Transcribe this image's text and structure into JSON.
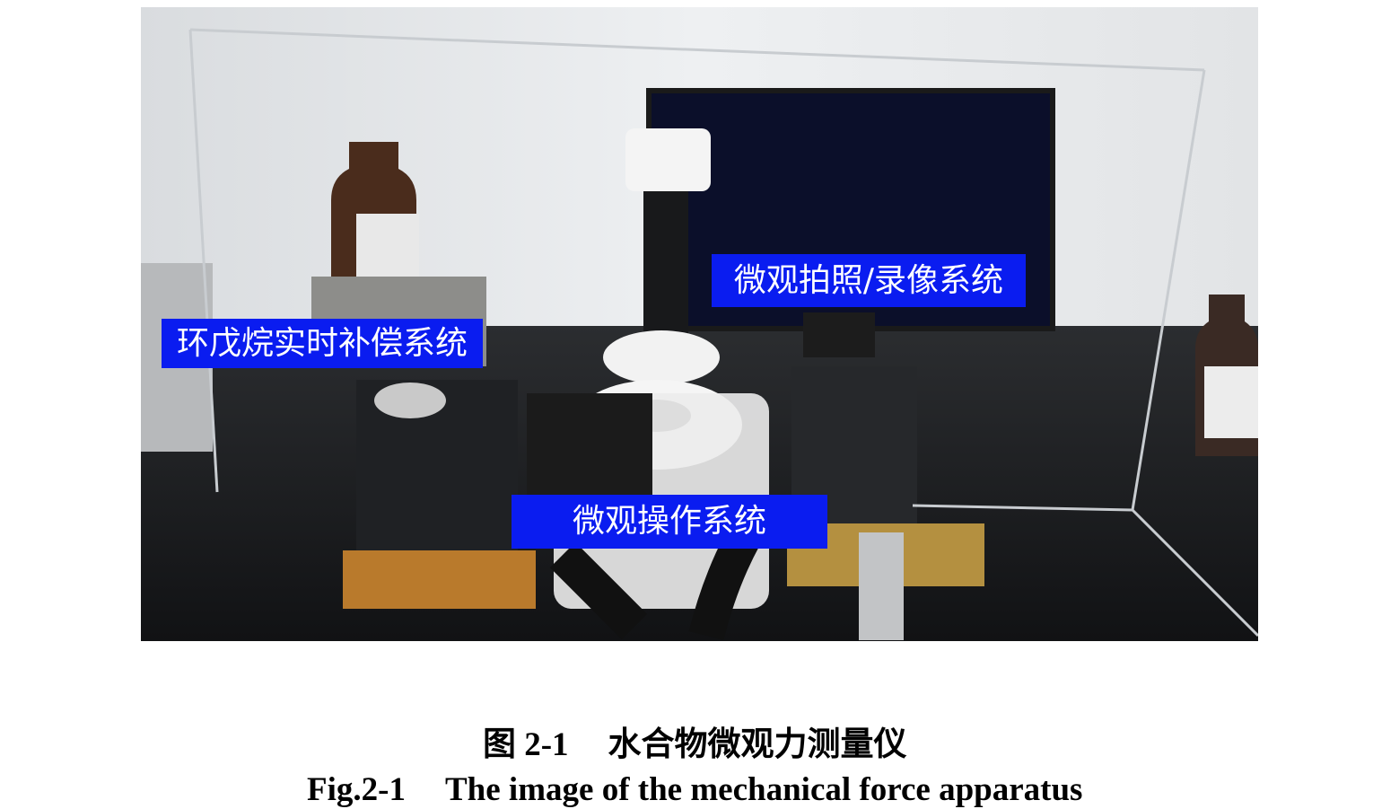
{
  "figure": {
    "labels": [
      "环戊烷实时补偿系统",
      "微观拍照/录像系统",
      "微观操作系统"
    ],
    "caption": {
      "zh": {
        "number": "图 2-1",
        "title": "水合物微观力测量仪"
      },
      "en": {
        "number": "Fig.2-1",
        "title": "The image of the mechanical force apparatus"
      }
    }
  }
}
